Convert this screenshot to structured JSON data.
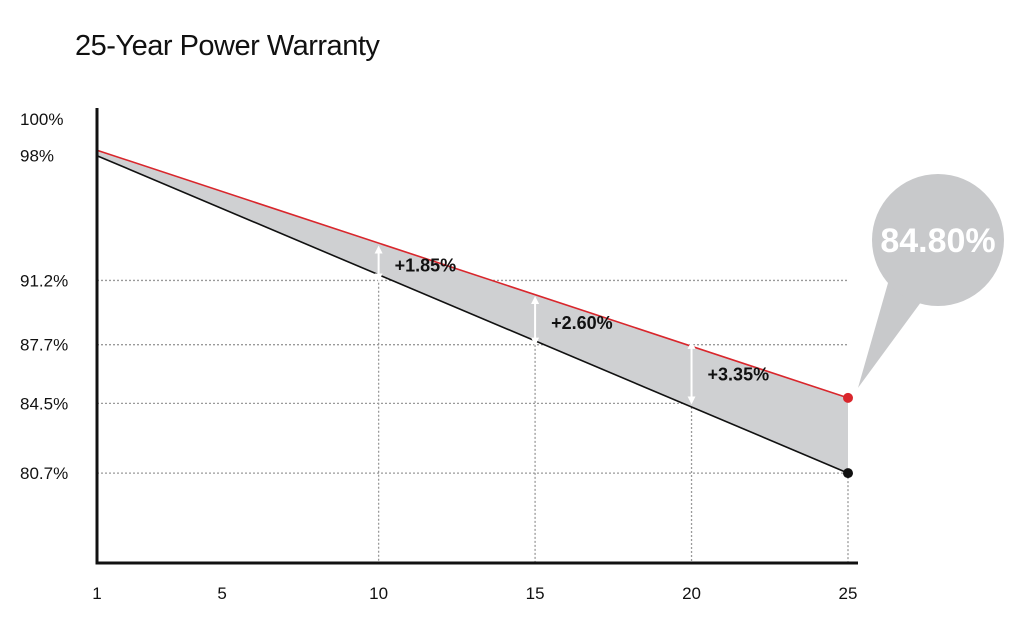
{
  "chart_data": {
    "type": "line",
    "title": "25-Year Power Warranty",
    "xlabel": "",
    "ylabel": "",
    "x_ticks": [
      1,
      5,
      10,
      15,
      20,
      25
    ],
    "y_ticks": [
      {
        "value": 100,
        "label": "100%"
      },
      {
        "value": 98,
        "label": "98%"
      },
      {
        "value": 91.2,
        "label": "91.2%"
      },
      {
        "value": 87.7,
        "label": "87.7%"
      },
      {
        "value": 84.5,
        "label": "84.5%"
      },
      {
        "value": 80.7,
        "label": "80.7%"
      }
    ],
    "ylim": [
      75.8,
      100.6
    ],
    "xlim": [
      1,
      25
    ],
    "series": [
      {
        "key": "upper",
        "color": "#d9262c",
        "points": [
          [
            1,
            98.3
          ],
          [
            25,
            84.8
          ]
        ]
      },
      {
        "key": "lower",
        "color": "#111111",
        "points": [
          [
            1,
            98
          ],
          [
            25,
            80.7
          ]
        ]
      }
    ],
    "fill_color": "#cfd0d2",
    "gains": [
      {
        "x": 10,
        "low": 91.2,
        "high": 93.05,
        "label": "+1.85%"
      },
      {
        "x": 15,
        "low": 87.7,
        "high": 90.3,
        "label": "+2.60%"
      },
      {
        "x": 20,
        "low": 84.5,
        "high": 87.85,
        "label": "+3.35%"
      }
    ],
    "reference_lines": [
      {
        "axis": "y",
        "value": 91.2
      },
      {
        "axis": "y",
        "value": 87.7
      },
      {
        "axis": "y",
        "value": 84.5
      },
      {
        "axis": "y",
        "value": 80.7
      },
      {
        "axis": "x",
        "value": 10
      },
      {
        "axis": "x",
        "value": 15
      },
      {
        "axis": "x",
        "value": 20
      },
      {
        "axis": "x",
        "value": 25
      }
    ],
    "callout": {
      "label": "84.80%",
      "x": 25,
      "y": 84.8,
      "color": "#c8c9cb"
    }
  }
}
